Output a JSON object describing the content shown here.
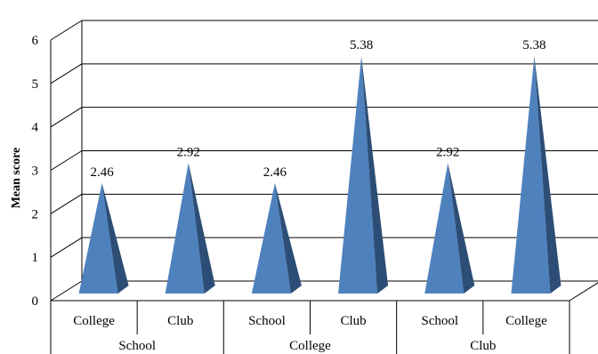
{
  "chart_data": {
    "type": "bar",
    "bar_shape": "3d-pyramid",
    "ylabel": "Mean score",
    "xlabel": "",
    "title": "",
    "ylim": [
      0,
      6
    ],
    "yticks": [
      "0",
      "1",
      "2",
      "3",
      "4",
      "5",
      "6"
    ],
    "groups": [
      {
        "label": "School",
        "categories": [
          "College",
          "Club"
        ],
        "values": [
          2.46,
          2.92
        ],
        "data_labels": [
          "2.46",
          "2.92"
        ]
      },
      {
        "label": "College",
        "categories": [
          "School",
          "Club"
        ],
        "values": [
          2.46,
          5.38
        ],
        "data_labels": [
          "2.46",
          "5.38"
        ]
      },
      {
        "label": "Club",
        "categories": [
          "School",
          "College"
        ],
        "values": [
          2.92,
          5.38
        ],
        "data_labels": [
          "2.92",
          "5.38"
        ]
      }
    ],
    "grid": true,
    "legend": "none",
    "colors": {
      "face": "#4f81bd",
      "shade": "#2c4d75",
      "grid": "#000000"
    }
  }
}
